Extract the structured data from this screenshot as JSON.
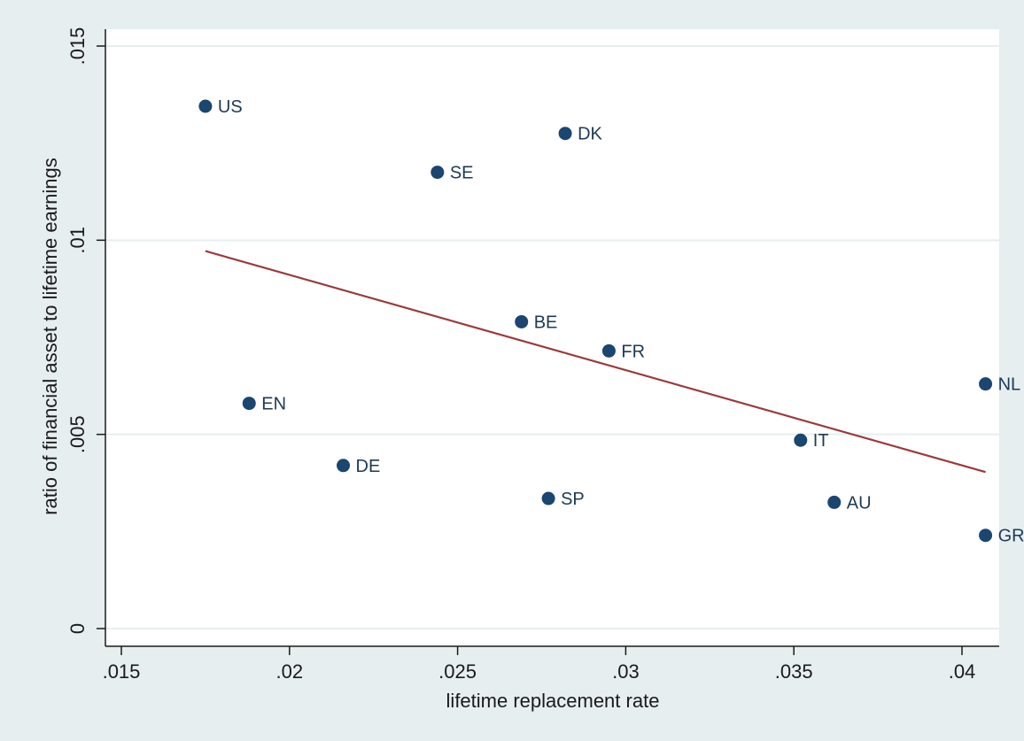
{
  "colors": {
    "page_background": "#e7eef0",
    "plot_background": "#ffffff",
    "point": "#1a4670",
    "fit_line": "#9b3a3a",
    "grid": "#e7eef0",
    "axis": "#1a1a1a"
  },
  "chart_data": {
    "type": "scatter",
    "title": "",
    "xlabel": "lifetime replacement rate",
    "ylabel": "ratio of financial asset to lifetime earnings",
    "xlim": [
      0.015,
      0.041
    ],
    "ylim": [
      0,
      0.015
    ],
    "x_ticks": [
      0.015,
      0.02,
      0.025,
      0.03,
      0.035,
      0.04
    ],
    "x_tick_labels": [
      ".015",
      ".02",
      ".025",
      ".03",
      ".035",
      ".04"
    ],
    "y_ticks": [
      0,
      0.005,
      0.01,
      0.015
    ],
    "y_tick_labels": [
      "0",
      ".005",
      ".01",
      ".015"
    ],
    "grid": "horizontal",
    "legend": "none",
    "points": [
      {
        "label": "US",
        "x": 0.0175,
        "y": 0.01345
      },
      {
        "label": "DK",
        "x": 0.0282,
        "y": 0.01275
      },
      {
        "label": "SE",
        "x": 0.0244,
        "y": 0.01175
      },
      {
        "label": "BE",
        "x": 0.0269,
        "y": 0.0079
      },
      {
        "label": "FR",
        "x": 0.0295,
        "y": 0.00715
      },
      {
        "label": "NL",
        "x": 0.0407,
        "y": 0.0063
      },
      {
        "label": "EN",
        "x": 0.0188,
        "y": 0.0058
      },
      {
        "label": "IT",
        "x": 0.0352,
        "y": 0.00485
      },
      {
        "label": "DE",
        "x": 0.0216,
        "y": 0.0042
      },
      {
        "label": "SP",
        "x": 0.0277,
        "y": 0.00335
      },
      {
        "label": "AU",
        "x": 0.0362,
        "y": 0.00325
      },
      {
        "label": "GR",
        "x": 0.0407,
        "y": 0.0024
      }
    ],
    "fit_line": {
      "x": [
        0.0175,
        0.0407
      ],
      "y": [
        0.00972,
        0.00403
      ]
    }
  }
}
